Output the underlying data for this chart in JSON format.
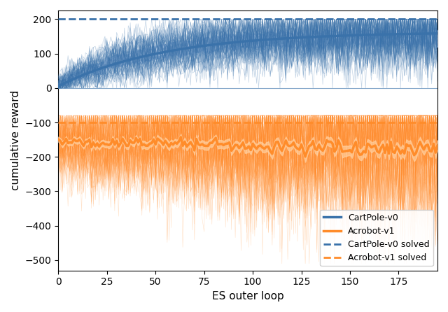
{
  "title": "",
  "xlabel": "ES outer loop",
  "ylabel": "cumulative reward",
  "xlim": [
    0,
    195
  ],
  "ylim": [
    -530,
    225
  ],
  "cartpole_color": "#3a72aa",
  "cartpole_color_light": "#aec6e8",
  "acrobot_color": "#ff8c2a",
  "acrobot_color_light": "#ffcf9e",
  "cartpole_solved": 200,
  "acrobot_solved": -100,
  "n_steps": 200,
  "n_cartpole_samples": 60,
  "n_acrobot_samples": 80,
  "figsize": [
    6.4,
    4.46
  ],
  "dpi": 100
}
